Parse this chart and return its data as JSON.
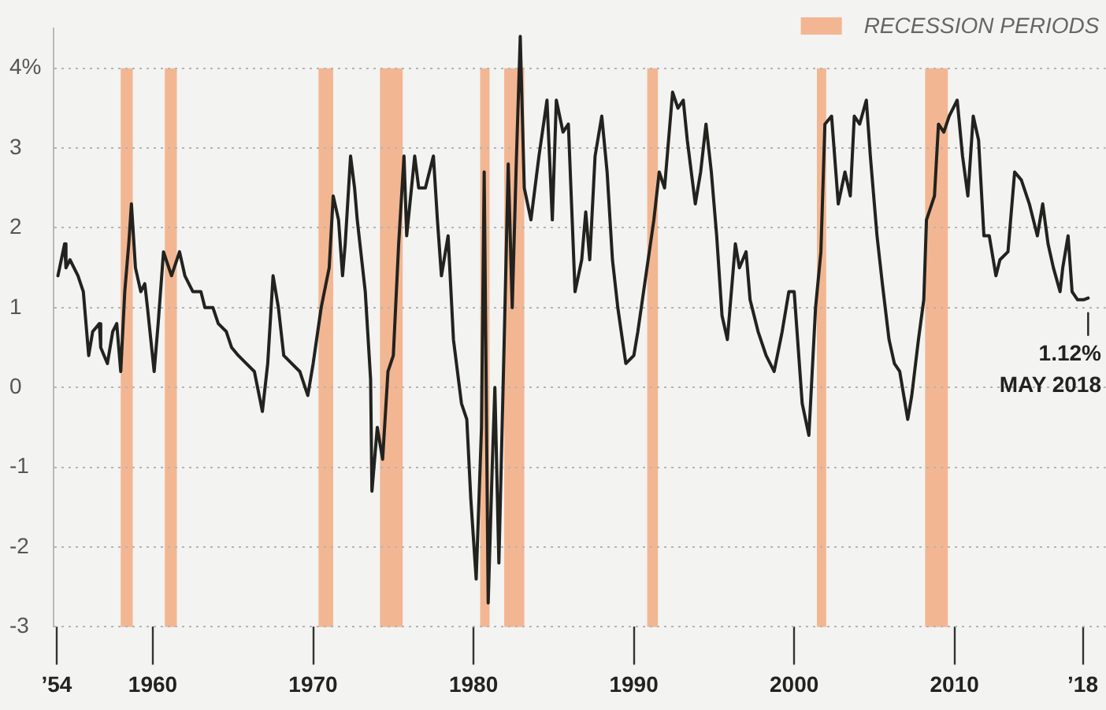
{
  "chart_data": {
    "type": "line",
    "color": "#22221e",
    "x": [
      "1954-02",
      "1954-07",
      "1954-08",
      "1954-11",
      "1955-05",
      "1955-09",
      "1956-01",
      "1956-04",
      "1956-09",
      "1956-10",
      "1957-03",
      "1957-07",
      "1957-10",
      "1958-01",
      "1958-04",
      "1958-07",
      "1958-09",
      "1958-12",
      "1959-04",
      "1959-07",
      "1959-09",
      "1960-02",
      "1960-05",
      "1960-09",
      "1960-11",
      "1961-03",
      "1961-09",
      "1962-01",
      "1962-07",
      "1963-01",
      "1963-04",
      "1963-10",
      "1964-02",
      "1964-08",
      "1964-12",
      "1965-05",
      "1965-11",
      "1966-05",
      "1966-11",
      "1967-03",
      "1967-07",
      "1967-11",
      "1968-03",
      "1968-09",
      "1969-03",
      "1969-09",
      "1970-01",
      "1970-07",
      "1971-01",
      "1971-04",
      "1971-08",
      "1971-11",
      "1972-01",
      "1972-05",
      "1972-08",
      "1972-10",
      "1973-04",
      "1973-08",
      "1973-09",
      "1974-01",
      "1974-05",
      "1974-09",
      "1975-01",
      "1975-05",
      "1975-09",
      "1975-11",
      "1976-05",
      "1976-08",
      "1977-01",
      "1977-07",
      "1977-10",
      "1978-01",
      "1978-06",
      "1978-10",
      "1979-04",
      "1979-08",
      "1979-11",
      "1980-03",
      "1980-07",
      "1980-09",
      "1980-12",
      "1981-03",
      "1981-05",
      "1981-08",
      "1981-12",
      "1982-03",
      "1982-06",
      "1982-09",
      "1982-12",
      "1983-03",
      "1983-08",
      "1984-02",
      "1984-08",
      "1984-12",
      "1985-03",
      "1985-08",
      "1985-12",
      "1986-05",
      "1986-10",
      "1987-01",
      "1987-04",
      "1987-08",
      "1988-01",
      "1988-05",
      "1988-09",
      "1989-01",
      "1989-07",
      "1990-01",
      "1990-04",
      "1990-10",
      "1991-04",
      "1991-08",
      "1991-12",
      "1992-06",
      "1992-10",
      "1993-02",
      "1993-05",
      "1993-11",
      "1994-03",
      "1994-07",
      "1994-11",
      "1995-03",
      "1995-07",
      "1995-11",
      "1996-03",
      "1996-05",
      "1996-08",
      "1997-01",
      "1997-04",
      "1997-10",
      "1998-04",
      "1998-10",
      "1999-04",
      "1999-09",
      "2000-01",
      "2000-07",
      "2000-12",
      "2001-05",
      "2001-09",
      "2001-12",
      "2002-05",
      "2002-10",
      "2003-03",
      "2003-07",
      "2003-10",
      "2004-02",
      "2004-07",
      "2004-10",
      "2005-03",
      "2005-07",
      "2005-12",
      "2006-04",
      "2006-08",
      "2007-02",
      "2007-05",
      "2007-10",
      "2008-02",
      "2008-04",
      "2008-10",
      "2009-01",
      "2009-05",
      "2009-09",
      "2010-03",
      "2010-07",
      "2010-11",
      "2011-03",
      "2011-07",
      "2011-11",
      "2012-03",
      "2012-08",
      "2012-11",
      "2013-05",
      "2013-10",
      "2014-03",
      "2014-09",
      "2015-03",
      "2015-07",
      "2015-11",
      "2016-03",
      "2016-08",
      "2016-10",
      "2017-02",
      "2017-05",
      "2017-09",
      "2018-02",
      "2018-05"
    ],
    "values": [
      1.4,
      1.8,
      1.5,
      1.6,
      1.4,
      1.2,
      0.4,
      0.7,
      0.8,
      0.5,
      0.3,
      0.7,
      0.8,
      0.2,
      1.2,
      1.8,
      2.3,
      1.5,
      1.2,
      1.3,
      1.0,
      0.2,
      0.8,
      1.7,
      1.6,
      1.4,
      1.7,
      1.4,
      1.2,
      1.2,
      1.0,
      1.0,
      0.8,
      0.7,
      0.5,
      0.4,
      0.3,
      0.2,
      -0.3,
      0.3,
      1.4,
      1.0,
      0.4,
      0.3,
      0.2,
      -0.1,
      0.3,
      1.0,
      1.5,
      2.4,
      2.1,
      1.4,
      1.8,
      2.9,
      2.5,
      2.1,
      1.2,
      0.1,
      -1.3,
      -0.5,
      -0.9,
      0.2,
      0.4,
      1.8,
      2.9,
      1.9,
      2.9,
      2.5,
      2.5,
      2.9,
      2.1,
      1.4,
      1.9,
      0.6,
      -0.2,
      -0.4,
      -1.4,
      -2.4,
      -0.5,
      2.7,
      -2.7,
      -1.0,
      0.0,
      -2.2,
      0.6,
      2.8,
      1.0,
      2.8,
      4.4,
      2.5,
      2.1,
      2.9,
      3.6,
      2.1,
      3.6,
      3.2,
      3.3,
      1.2,
      1.6,
      2.2,
      1.6,
      2.9,
      3.4,
      2.7,
      1.6,
      1.0,
      0.3,
      0.4,
      0.7,
      1.4,
      2.1,
      2.7,
      2.5,
      3.7,
      3.5,
      3.6,
      3.1,
      2.3,
      2.7,
      3.3,
      2.7,
      1.9,
      0.9,
      0.6,
      1.4,
      1.8,
      1.5,
      1.7,
      1.1,
      0.7,
      0.4,
      0.2,
      0.7,
      1.2,
      1.2,
      -0.2,
      -0.6,
      1.0,
      1.7,
      3.3,
      3.4,
      2.3,
      2.7,
      2.4,
      3.4,
      3.3,
      3.6,
      2.9,
      1.9,
      1.3,
      0.6,
      0.3,
      0.2,
      -0.4,
      -0.1,
      0.6,
      1.1,
      2.1,
      2.4,
      3.3,
      3.2,
      3.4,
      3.6,
      2.9,
      2.4,
      3.4,
      3.1,
      1.9,
      1.9,
      1.4,
      1.6,
      1.7,
      2.7,
      2.6,
      2.3,
      1.9,
      2.3,
      1.8,
      1.5,
      1.2,
      1.5,
      1.9,
      1.2,
      1.1,
      1.1,
      1.12
    ],
    "value_labels": [
      null,
      null,
      null,
      null,
      null,
      null,
      null,
      null,
      null,
      null,
      null,
      null,
      null,
      null,
      null,
      null,
      null,
      null,
      null,
      null,
      null,
      null,
      null,
      null,
      null,
      null,
      null,
      null,
      null,
      null,
      null,
      null,
      null,
      null,
      null,
      null,
      null,
      null,
      null,
      null,
      null,
      null,
      null,
      null,
      null,
      null,
      null,
      null,
      null,
      null,
      null,
      null,
      null,
      null,
      null,
      null,
      null,
      null,
      null,
      null,
      null,
      null,
      null,
      null,
      null,
      null,
      null,
      null,
      null,
      null,
      null,
      null,
      null,
      null,
      null,
      null,
      null,
      null,
      null,
      null,
      null,
      null,
      null,
      null,
      null,
      null,
      null,
      null,
      null,
      null,
      null,
      null,
      null,
      null,
      null,
      null,
      null,
      null,
      null,
      null,
      null,
      null,
      null,
      null,
      null,
      null,
      null,
      null,
      null,
      null,
      null,
      null,
      null,
      null,
      null,
      null,
      null,
      null,
      null,
      null,
      null,
      null,
      null,
      null,
      null,
      null,
      null,
      null,
      null,
      null,
      null,
      null,
      null,
      null,
      null,
      null,
      null,
      null,
      null,
      null,
      null,
      null,
      null,
      null,
      null,
      null,
      null,
      null,
      null,
      null,
      null,
      null,
      null,
      null,
      null,
      null,
      null,
      null,
      null,
      null,
      null,
      null,
      null,
      null,
      null,
      null,
      null,
      null,
      null,
      null,
      null,
      null,
      null,
      null,
      null,
      null,
      null,
      null,
      null,
      null,
      null,
      null,
      null,
      null,
      null,
      "1.12%"
    ],
    "xlim": [
      "1953-11",
      "2019-06"
    ],
    "xticks": [
      {
        "value": "1954",
        "label": "’54"
      },
      {
        "value": "1960",
        "label": "1960"
      },
      {
        "value": "1970",
        "label": "1970"
      },
      {
        "value": "1980",
        "label": "1980"
      },
      {
        "value": "1990",
        "label": "1990"
      },
      {
        "value": "2000",
        "label": "2000"
      },
      {
        "value": "2010",
        "label": "2010"
      },
      {
        "value": "2018",
        "label": "’18"
      }
    ],
    "ylim": [
      -3,
      4.5
    ],
    "yticks": [
      -3,
      -2,
      -1,
      0,
      1,
      2,
      3,
      {
        "value": 4,
        "label": "4%"
      }
    ],
    "grid": "y",
    "legend": "top right",
    "bands": [
      {
        "axis": "x",
        "from": "1958-01",
        "to": "1958-10",
        "label": "RECESSION PERIODS",
        "color": "#f3b692"
      },
      {
        "axis": "x",
        "from": "1960-10",
        "to": "1961-07",
        "color": "#f3b692"
      },
      {
        "axis": "x",
        "from": "1970-05",
        "to": "1971-04",
        "color": "#f3b692"
      },
      {
        "axis": "x",
        "from": "1974-03",
        "to": "1975-08",
        "color": "#f3b692"
      },
      {
        "axis": "x",
        "from": "1980-06",
        "to": "1981-01",
        "color": "#f3b692"
      },
      {
        "axis": "x",
        "from": "1981-12",
        "to": "1983-03",
        "color": "#f3b692"
      },
      {
        "axis": "x",
        "from": "1990-11",
        "to": "1991-07",
        "color": "#f3b692"
      },
      {
        "axis": "x",
        "from": "2001-06",
        "to": "2002-01",
        "color": "#f3b692"
      },
      {
        "axis": "x",
        "from": "2008-03",
        "to": "2009-08",
        "color": "#f3b692"
      }
    ],
    "annotations": [
      "MAY 2018"
    ]
  }
}
